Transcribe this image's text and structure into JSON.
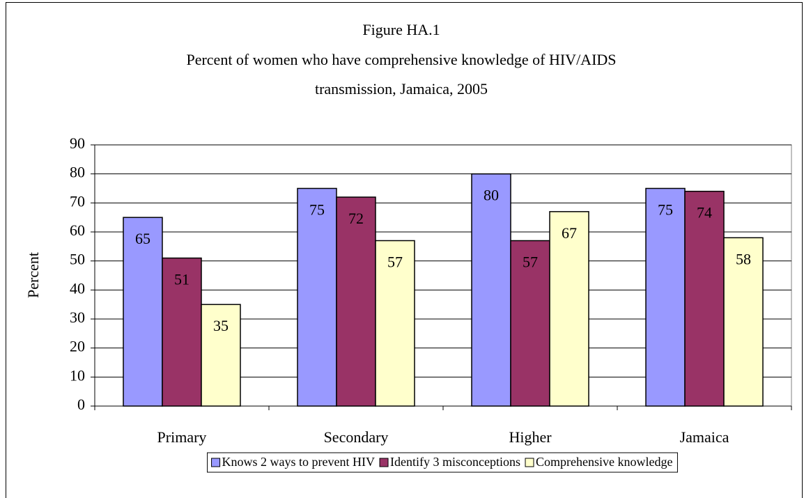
{
  "chart_data": {
    "type": "bar",
    "title": [
      "Figure HA.1",
      "Percent of women who have comprehensive knowledge of HIV/AIDS",
      "transmission, Jamaica, 2005"
    ],
    "y_label": "Percent",
    "categories": [
      "Primary",
      "Secondary",
      "Higher",
      "Jamaica"
    ],
    "series": [
      {
        "name": "Knows 2 ways to prevent HIV",
        "color": "#9999ff",
        "values": [
          65,
          75,
          80,
          75
        ]
      },
      {
        "name": "Identify 3 misconceptions",
        "color": "#993366",
        "values": [
          51,
          72,
          57,
          74
        ]
      },
      {
        "name": "Comprehensive knowledge",
        "color": "#ffffcc",
        "values": [
          35,
          57,
          67,
          58
        ]
      }
    ],
    "ylim": [
      0,
      90
    ],
    "yticks": [
      0,
      10,
      20,
      30,
      40,
      50,
      60,
      70,
      80,
      90
    ],
    "grid": true,
    "legend": "bottom"
  }
}
